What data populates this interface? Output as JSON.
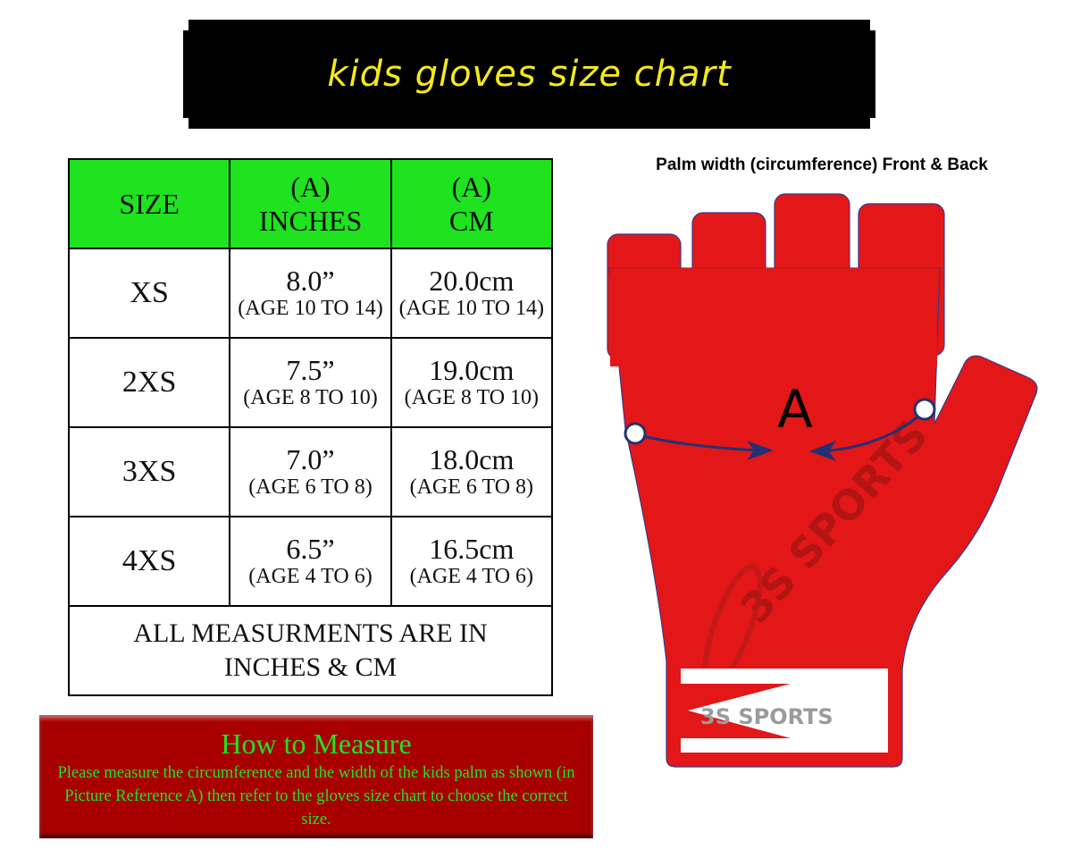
{
  "title": "kids gloves size chart",
  "table": {
    "headers": [
      {
        "line1": "SIZE",
        "line2": ""
      },
      {
        "line1": "(A)",
        "line2": "INCHES"
      },
      {
        "line1": "(A)",
        "line2": "CM"
      }
    ],
    "rows": [
      {
        "size": "XS",
        "inches": "8.0”",
        "inches_age": "(AGE 10 TO 14)",
        "cm": "20.0cm",
        "cm_age": "(AGE 10 TO 14)"
      },
      {
        "size": "2XS",
        "inches": "7.5”",
        "inches_age": "(AGE 8 TO 10)",
        "cm": "19.0cm",
        "cm_age": "(AGE 8 TO 10)"
      },
      {
        "size": "3XS",
        "inches": "7.0”",
        "inches_age": "(AGE 6 TO 8)",
        "cm": "18.0cm",
        "cm_age": "(AGE 6 TO 8)"
      },
      {
        "size": "4XS",
        "inches": "6.5”",
        "inches_age": "(AGE 4 TO 6)",
        "cm": "16.5cm",
        "cm_age": "(AGE 4 TO 6)"
      }
    ],
    "footer": "ALL MEASURMENTS ARE IN INCHES &  CM"
  },
  "how_to": {
    "title": "How to Measure",
    "text": "Please measure the circumference and the width of the kids palm as shown (in Picture Reference A) then refer to the gloves size chart to choose the correct size."
  },
  "diagram": {
    "label": "Palm width (circumference) Front & Back",
    "marker": "A",
    "watermark": "3S SPORTS",
    "glove_color": "#e31717",
    "arrow_color": "#233174"
  }
}
